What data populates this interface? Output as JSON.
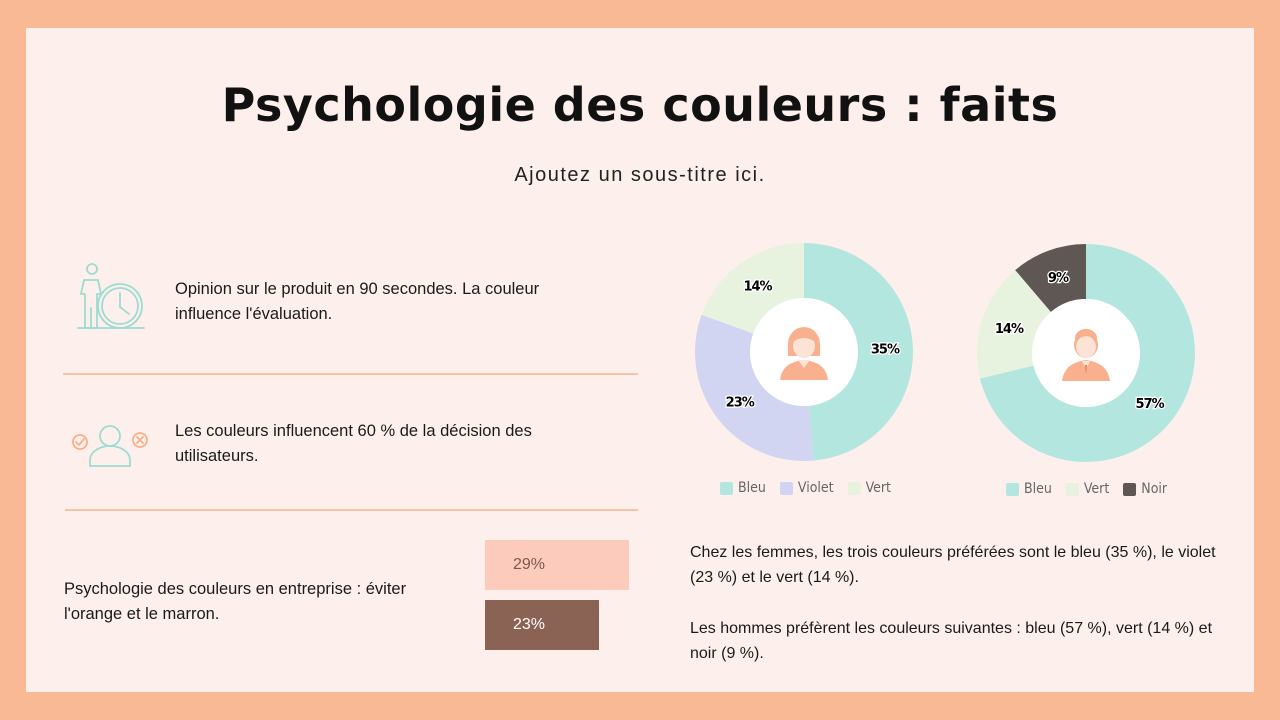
{
  "header": {
    "title": "Psychologie des couleurs : faits",
    "subtitle": "Ajoutez un sous-titre ici."
  },
  "facts": [
    {
      "text": "Opinion sur le produit en 90 secondes. La couleur influence l'évaluation.",
      "icon": "person-clock-icon"
    },
    {
      "text": "Les couleurs influencent 60 % de la décision des utilisateurs.",
      "icon": "person-choice-icon"
    },
    {
      "text": "Psychologie des couleurs en entreprise : éviter l'orange et le marron."
    }
  ],
  "bars": [
    {
      "label": "29%",
      "value": 29,
      "color": "#fdcbbb",
      "text_color": "#7a5a50"
    },
    {
      "label": "23%",
      "value": 23,
      "color": "#8b6355",
      "text_color": "#ffffff"
    }
  ],
  "chart_data": [
    {
      "type": "pie",
      "donut": true,
      "center_icon": "woman-avatar-icon",
      "categories": [
        "Bleu",
        "Violet",
        "Vert"
      ],
      "values": [
        35,
        23,
        14
      ],
      "labels": [
        "35%",
        "23%",
        "14%"
      ],
      "colors": [
        "#b4e6e0",
        "#d1d5f2",
        "#e7f3de"
      ],
      "legend": "bottom"
    },
    {
      "type": "pie",
      "donut": true,
      "center_icon": "man-avatar-icon",
      "categories": [
        "Bleu",
        "Vert",
        "Noir"
      ],
      "values": [
        57,
        14,
        9
      ],
      "labels": [
        "57%",
        "14%",
        "9%"
      ],
      "colors": [
        "#b4e6e0",
        "#e7f3de",
        "#5f5754"
      ],
      "legend": "bottom"
    }
  ],
  "paragraphs": [
    "Chez les femmes, les trois couleurs préférées sont le bleu (35 %), le violet (23 %) et le vert (14 %).",
    "Les hommes préfèrent les couleurs suivantes : bleu (57 %), vert (14 %) et noir (9 %)."
  ]
}
